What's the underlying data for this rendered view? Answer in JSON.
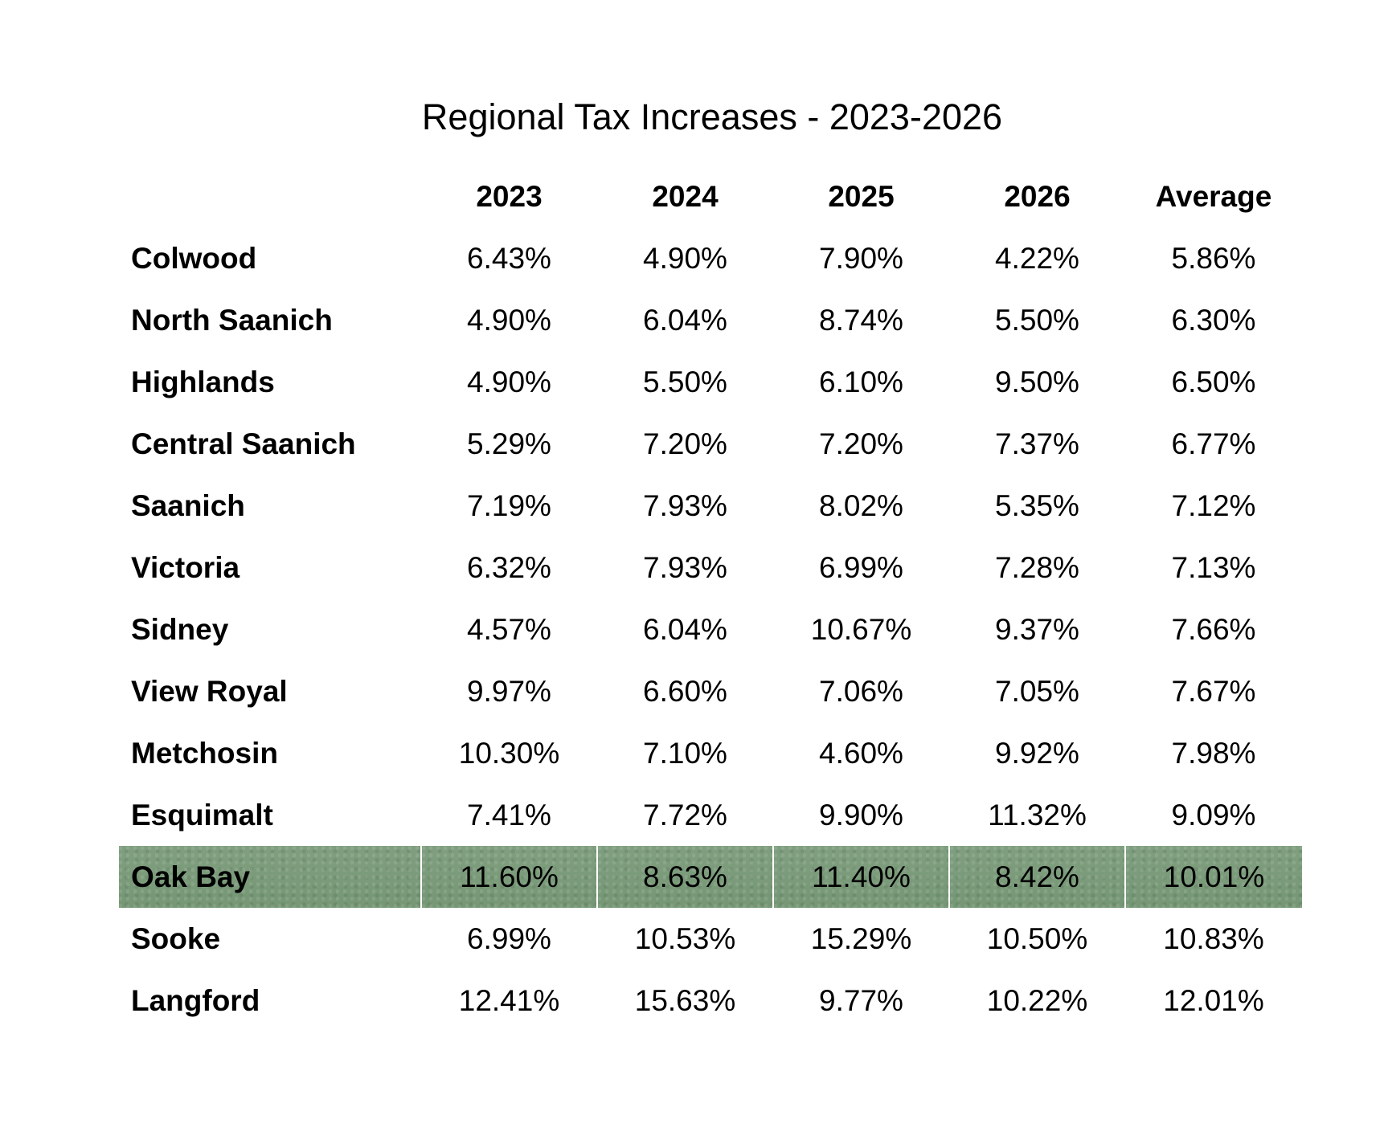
{
  "chart_data": {
    "type": "table",
    "title": "Regional Tax Increases - 2023-2026",
    "columns": [
      "",
      "2023",
      "2024",
      "2025",
      "2026",
      "Average"
    ],
    "highlight_color": "#7a9c7c",
    "highlight_row": "Oak Bay",
    "rows": [
      {
        "name": "Colwood",
        "values": [
          "6.43%",
          "4.90%",
          "7.90%",
          "4.22%",
          "5.86%"
        ]
      },
      {
        "name": "North Saanich",
        "values": [
          "4.90%",
          "6.04%",
          "8.74%",
          "5.50%",
          "6.30%"
        ]
      },
      {
        "name": "Highlands",
        "values": [
          "4.90%",
          "5.50%",
          "6.10%",
          "9.50%",
          "6.50%"
        ]
      },
      {
        "name": "Central Saanich",
        "values": [
          "5.29%",
          "7.20%",
          "7.20%",
          "7.37%",
          "6.77%"
        ]
      },
      {
        "name": "Saanich",
        "values": [
          "7.19%",
          "7.93%",
          "8.02%",
          "5.35%",
          "7.12%"
        ]
      },
      {
        "name": "Victoria",
        "values": [
          "6.32%",
          "7.93%",
          "6.99%",
          "7.28%",
          "7.13%"
        ]
      },
      {
        "name": "Sidney",
        "values": [
          "4.57%",
          "6.04%",
          "10.67%",
          "9.37%",
          "7.66%"
        ]
      },
      {
        "name": "View Royal",
        "values": [
          "9.97%",
          "6.60%",
          "7.06%",
          "7.05%",
          "7.67%"
        ]
      },
      {
        "name": "Metchosin",
        "values": [
          "10.30%",
          "7.10%",
          "4.60%",
          "9.92%",
          "7.98%"
        ]
      },
      {
        "name": "Esquimalt",
        "values": [
          "7.41%",
          "7.72%",
          "9.90%",
          "11.32%",
          "9.09%"
        ]
      },
      {
        "name": "Oak Bay",
        "values": [
          "11.60%",
          "8.63%",
          "11.40%",
          "8.42%",
          "10.01%"
        ]
      },
      {
        "name": "Sooke",
        "values": [
          "6.99%",
          "10.53%",
          "15.29%",
          "10.50%",
          "10.83%"
        ]
      },
      {
        "name": "Langford",
        "values": [
          "12.41%",
          "15.63%",
          "9.77%",
          "10.22%",
          "12.01%"
        ]
      }
    ]
  }
}
